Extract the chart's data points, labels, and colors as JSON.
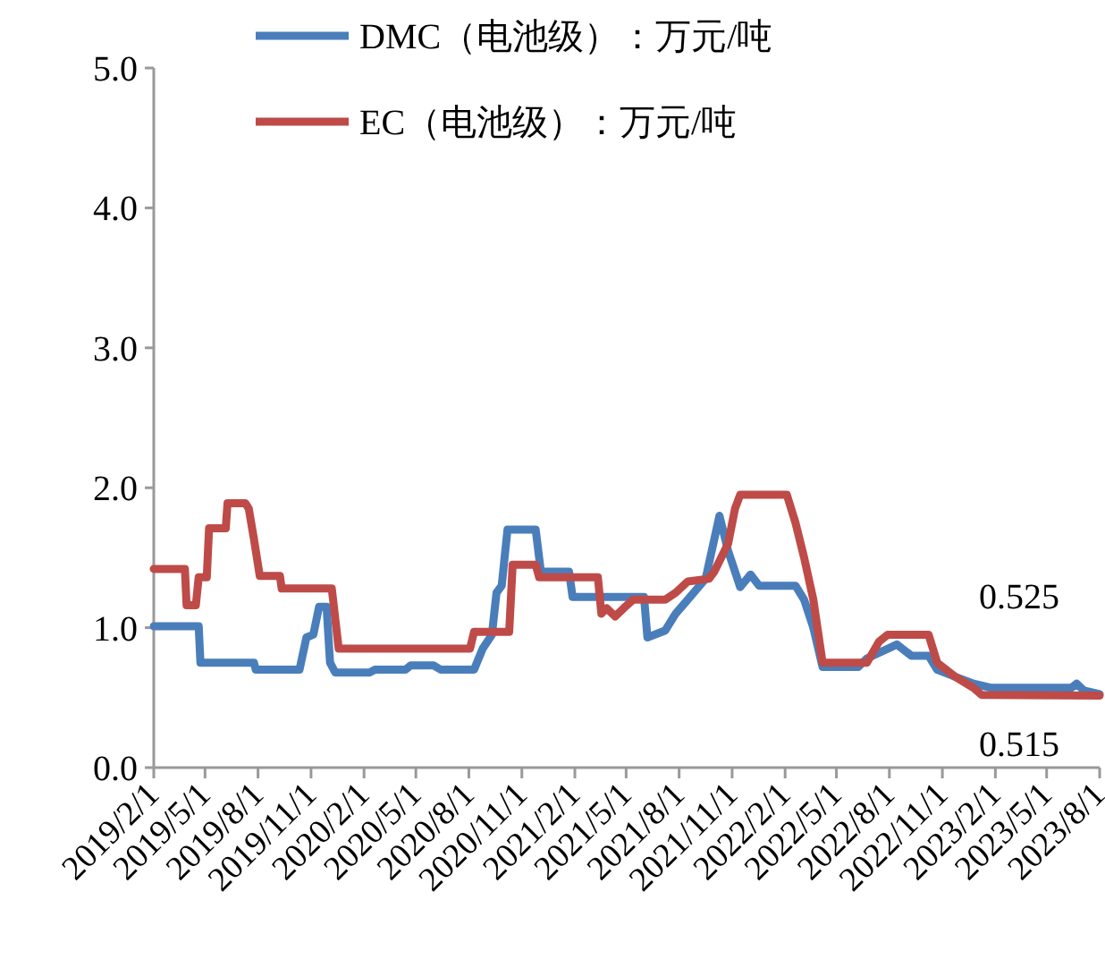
{
  "chart_data": {
    "type": "line",
    "legend": "top",
    "xlim": [
      "2019-02-01",
      "2023-08-01"
    ],
    "xticks": [
      {
        "value": "2019-02-01",
        "label": "2019/2/1"
      },
      {
        "value": "2019-05-01",
        "label": "2019/5/1"
      },
      {
        "value": "2019-08-01",
        "label": "2019/8/1"
      },
      {
        "value": "2019-11-01",
        "label": "2019/11/1"
      },
      {
        "value": "2020-02-01",
        "label": "2020/2/1"
      },
      {
        "value": "2020-05-01",
        "label": "2020/5/1"
      },
      {
        "value": "2020-08-01",
        "label": "2020/8/1"
      },
      {
        "value": "2020-11-01",
        "label": "2020/11/1"
      },
      {
        "value": "2021-02-01",
        "label": "2021/2/1"
      },
      {
        "value": "2021-05-01",
        "label": "2021/5/1"
      },
      {
        "value": "2021-08-01",
        "label": "2021/8/1"
      },
      {
        "value": "2021-11-01",
        "label": "2021/11/1"
      },
      {
        "value": "2022-02-01",
        "label": "2022/2/1"
      },
      {
        "value": "2022-05-01",
        "label": "2022/5/1"
      },
      {
        "value": "2022-08-01",
        "label": "2022/8/1"
      },
      {
        "value": "2022-11-01",
        "label": "2022/11/1"
      },
      {
        "value": "2023-02-01",
        "label": "2023/2/1"
      },
      {
        "value": "2023-05-01",
        "label": "2023/5/1"
      },
      {
        "value": "2023-08-01",
        "label": "2023/8/1"
      }
    ],
    "ylim": [
      0,
      5
    ],
    "yticks": [
      {
        "value": 0,
        "label": "0.0"
      },
      {
        "value": 1,
        "label": "1.0"
      },
      {
        "value": 2,
        "label": "2.0"
      },
      {
        "value": 3,
        "label": "3.0"
      },
      {
        "value": 4,
        "label": "4.0"
      },
      {
        "value": 5,
        "label": "5.0"
      }
    ],
    "series": [
      {
        "name": "DMC（电池级）：万元/吨",
        "color": "#4a7ebb",
        "x": [
          "2019-02-01",
          "2019-04-20",
          "2019-04-23",
          "2019-07-25",
          "2019-07-28",
          "2019-10-12",
          "2019-10-24",
          "2019-11-05",
          "2019-11-15",
          "2019-11-28",
          "2019-12-04",
          "2019-12-13",
          "2020-02-11",
          "2020-02-20",
          "2020-04-13",
          "2020-04-22",
          "2020-06-01",
          "2020-06-13",
          "2020-08-10",
          "2020-08-25",
          "2020-09-10",
          "2020-09-18",
          "2020-09-27",
          "2020-10-07",
          "2020-11-25",
          "2020-12-04",
          "2021-01-22",
          "2021-01-28",
          "2021-06-01",
          "2021-06-07",
          "2021-07-08",
          "2021-07-26",
          "2021-08-16",
          "2021-09-16",
          "2021-10-10",
          "2021-10-25",
          "2021-11-15",
          "2021-12-03",
          "2021-12-18",
          "2022-02-19",
          "2022-03-06",
          "2022-03-22",
          "2022-04-07",
          "2022-06-08",
          "2022-06-23",
          "2022-08-14",
          "2022-09-08",
          "2022-10-08",
          "2022-10-23",
          "2022-11-23",
          "2022-12-25",
          "2023-01-25",
          "2023-06-13",
          "2023-06-22",
          "2023-07-05",
          "2023-08-01"
        ],
        "values": [
          1.01,
          1.01,
          0.75,
          0.75,
          0.7,
          0.7,
          0.93,
          0.95,
          1.15,
          1.15,
          0.75,
          0.68,
          0.68,
          0.7,
          0.7,
          0.73,
          0.73,
          0.7,
          0.7,
          0.85,
          0.95,
          1.25,
          1.3,
          1.7,
          1.7,
          1.4,
          1.4,
          1.22,
          1.22,
          0.93,
          0.98,
          1.1,
          1.2,
          1.35,
          1.8,
          1.55,
          1.29,
          1.38,
          1.3,
          1.3,
          1.2,
          1.0,
          0.72,
          0.72,
          0.78,
          0.88,
          0.8,
          0.8,
          0.7,
          0.65,
          0.6,
          0.57,
          0.57,
          0.6,
          0.55,
          0.525
        ],
        "value_labels": [
          null,
          null,
          null,
          null,
          null,
          null,
          null,
          null,
          null,
          null,
          null,
          null,
          null,
          null,
          null,
          null,
          null,
          null,
          null,
          null,
          null,
          null,
          null,
          null,
          null,
          null,
          null,
          null,
          null,
          null,
          null,
          null,
          null,
          null,
          null,
          null,
          null,
          null,
          null,
          null,
          null,
          null,
          null,
          null,
          null,
          null,
          null,
          null,
          null,
          null,
          null,
          null,
          null,
          null,
          null,
          "0.525"
        ]
      },
      {
        "name": "EC（电池级）：万元/吨",
        "color": "#be4b48",
        "x": [
          "2019-02-01",
          "2019-03-27",
          "2019-03-30",
          "2019-04-15",
          "2019-04-20",
          "2019-05-04",
          "2019-05-08",
          "2019-06-06",
          "2019-06-09",
          "2019-07-10",
          "2019-07-16",
          "2019-07-25",
          "2019-08-04",
          "2019-09-08",
          "2019-09-11",
          "2019-12-07",
          "2019-12-19",
          "2020-08-03",
          "2020-08-10",
          "2020-10-10",
          "2020-10-16",
          "2020-11-25",
          "2020-12-01",
          "2021-03-13",
          "2021-03-19",
          "2021-03-28",
          "2021-04-12",
          "2021-04-27",
          "2021-05-13",
          "2021-07-08",
          "2021-07-26",
          "2021-08-16",
          "2021-09-22",
          "2021-10-01",
          "2021-10-25",
          "2021-11-06",
          "2021-11-15",
          "2022-02-04",
          "2022-02-19",
          "2022-03-06",
          "2022-03-22",
          "2022-04-07",
          "2022-06-23",
          "2022-07-14",
          "2022-07-29",
          "2022-10-08",
          "2022-10-23",
          "2022-11-23",
          "2022-12-25",
          "2023-01-08",
          "2023-08-01"
        ],
        "values": [
          1.42,
          1.42,
          1.16,
          1.16,
          1.36,
          1.36,
          1.71,
          1.71,
          1.89,
          1.89,
          1.85,
          1.63,
          1.37,
          1.37,
          1.28,
          1.28,
          0.85,
          0.85,
          0.97,
          0.97,
          1.45,
          1.45,
          1.36,
          1.36,
          1.1,
          1.14,
          1.08,
          1.14,
          1.2,
          1.2,
          1.25,
          1.33,
          1.35,
          1.4,
          1.6,
          1.85,
          1.95,
          1.95,
          1.75,
          1.5,
          1.2,
          0.75,
          0.75,
          0.9,
          0.95,
          0.95,
          0.75,
          0.65,
          0.57,
          0.52,
          0.515
        ],
        "value_labels": [
          null,
          null,
          null,
          null,
          null,
          null,
          null,
          null,
          null,
          null,
          null,
          null,
          null,
          null,
          null,
          null,
          null,
          null,
          null,
          null,
          null,
          null,
          null,
          null,
          null,
          null,
          null,
          null,
          null,
          null,
          null,
          null,
          null,
          null,
          null,
          null,
          null,
          null,
          null,
          null,
          null,
          null,
          null,
          null,
          null,
          null,
          null,
          null,
          null,
          null,
          "0.515"
        ]
      }
    ]
  }
}
